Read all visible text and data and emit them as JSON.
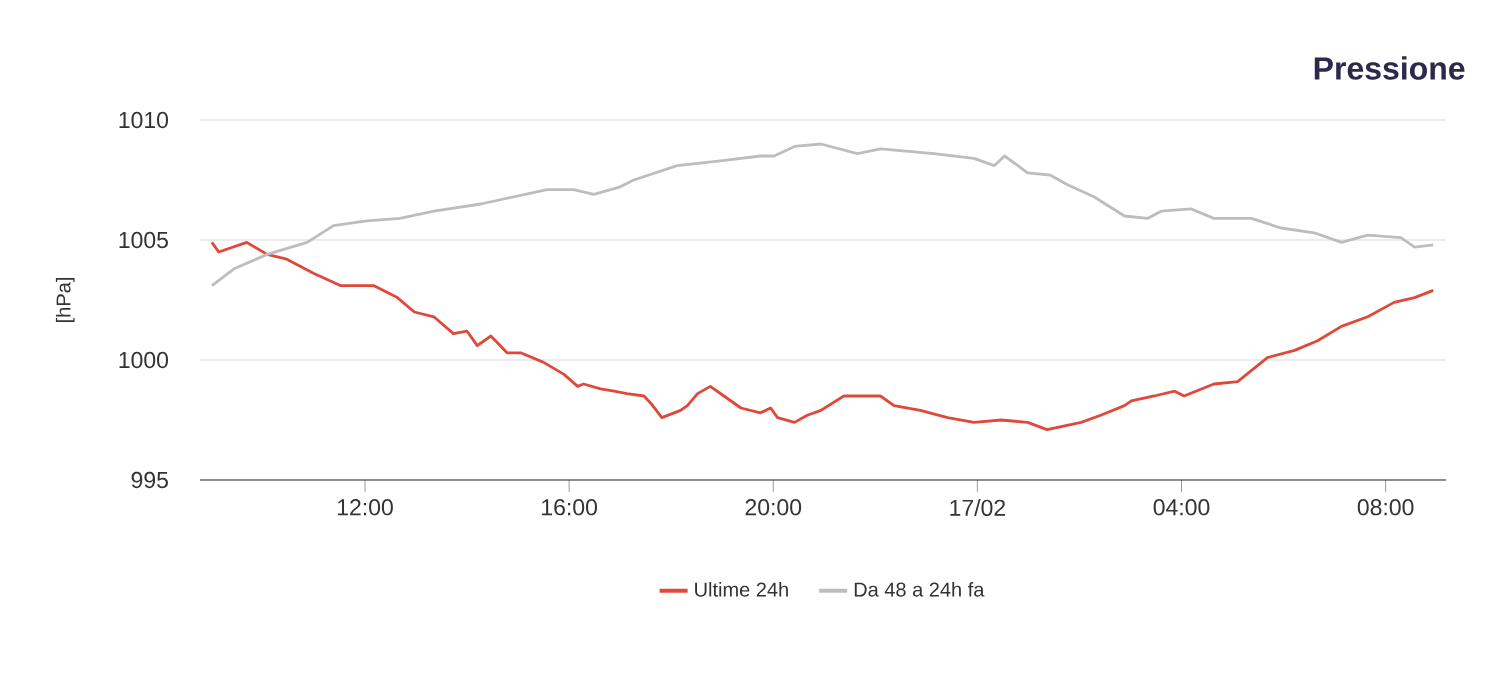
{
  "chart_data": {
    "type": "line",
    "title": "Pressione",
    "ylabel": "[hPa]",
    "xlim": [
      "--02-16T08:46",
      "--02-17T09:11"
    ],
    "ylim": [
      995,
      1010
    ],
    "xticks": [
      {
        "value": "--02-16T12:00",
        "label": "12:00"
      },
      {
        "value": "--02-16T16:00",
        "label": "16:00"
      },
      {
        "value": "--02-16T20:00",
        "label": "20:00"
      },
      {
        "value": "--02-17T00:00",
        "label": "17/02"
      },
      {
        "value": "--02-17T04:00",
        "label": "04:00"
      },
      {
        "value": "--02-17T08:00",
        "label": "08:00"
      }
    ],
    "yticks": [
      995,
      1000,
      1005,
      1010
    ],
    "grid": "y",
    "legend": "bottom",
    "marker": "none",
    "line_style": "solid",
    "series": [
      {
        "name": "Ultime 24h",
        "color": "#e0493a",
        "x": [
          "--02-16T09:00",
          "--02-16T09:08",
          "--02-16T09:41",
          "--02-16T10:05",
          "--02-16T10:28",
          "--02-16T11:00",
          "--02-16T11:31",
          "--02-16T12:10",
          "--02-16T12:38",
          "--02-16T12:58",
          "--02-16T13:21",
          "--02-16T13:44",
          "--02-16T14:00",
          "--02-16T14:12",
          "--02-16T14:28",
          "--02-16T14:47",
          "--02-16T15:03",
          "--02-16T15:30",
          "--02-16T15:54",
          "--02-16T16:10",
          "--02-16T16:17",
          "--02-16T16:37",
          "--02-16T16:53",
          "--02-16T17:08",
          "--02-16T17:28",
          "--02-16T17:36",
          "--02-16T17:49",
          "--02-16T18:11",
          "--02-16T18:19",
          "--02-16T18:31",
          "--02-16T18:46",
          "--02-16T19:02",
          "--02-16T19:22",
          "--02-16T19:45",
          "--02-16T19:57",
          "--02-16T20:05",
          "--02-16T20:25",
          "--02-16T20:40",
          "--02-16T20:56",
          "--02-16T21:23",
          "--02-16T22:06",
          "--02-16T22:22",
          "--02-16T22:53",
          "--02-16T23:25",
          "--02-16T23:56",
          "--02-17T00:28",
          "--02-17T00:59",
          "--02-17T01:22",
          "--02-17T02:02",
          "--02-17T02:25",
          "--02-17T02:53",
          "--02-17T03:01",
          "--02-17T03:28",
          "--02-17T03:52",
          "--02-17T04:03",
          "--02-17T04:38",
          "--02-17T05:06",
          "--02-17T05:41",
          "--02-17T06:13",
          "--02-17T06:40",
          "--02-17T07:08",
          "--02-17T07:39",
          "--02-17T08:10",
          "--02-17T08:34",
          "--02-17T08:56"
        ],
        "values": [
          1004.9,
          1004.5,
          1004.9,
          1004.4,
          1004.2,
          1003.6,
          1003.1,
          1003.1,
          1002.6,
          1002.0,
          1001.8,
          1001.1,
          1001.2,
          1000.6,
          1001.0,
          1000.3,
          1000.3,
          999.9,
          999.4,
          998.9,
          999.0,
          998.8,
          998.7,
          998.6,
          998.5,
          998.2,
          997.6,
          997.9,
          998.1,
          998.6,
          998.9,
          998.5,
          998.0,
          997.8,
          998.0,
          997.6,
          997.4,
          997.7,
          997.9,
          998.5,
          998.5,
          998.1,
          997.9,
          997.6,
          997.4,
          997.5,
          997.4,
          997.1,
          997.4,
          997.7,
          998.1,
          998.3,
          998.5,
          998.7,
          998.5,
          999.0,
          999.1,
          1000.1,
          1000.4,
          1000.8,
          1001.4,
          1001.8,
          1002.4,
          1002.6,
          1002.9
        ]
      },
      {
        "name": "Da 48 a 24h fa",
        "color": "#bdbdbd",
        "x": [
          "--02-16T09:00",
          "--02-16T09:26",
          "--02-16T10:05",
          "--02-16T10:52",
          "--02-16T11:23",
          "--02-16T12:02",
          "--02-16T12:41",
          "--02-16T13:21",
          "--02-16T14:16",
          "--02-16T14:55",
          "--02-16T15:34",
          "--02-16T16:05",
          "--02-16T16:29",
          "--02-16T16:59",
          "--02-16T17:16",
          "--02-16T18:07",
          "--02-16T18:58",
          "--02-16T19:45",
          "--02-16T20:01",
          "--02-16T20:25",
          "--02-16T20:56",
          "--02-16T21:39",
          "--02-16T22:06",
          "--02-16T23:09",
          "--02-16T23:56",
          "--02-17T00:20",
          "--02-17T00:32",
          "--02-17T00:59",
          "--02-17T01:26",
          "--02-17T01:46",
          "--02-17T02:17",
          "--02-17T02:53",
          "--02-17T03:20",
          "--02-17T03:36",
          "--02-17T04:11",
          "--02-17T04:38",
          "--02-17T05:22",
          "--02-17T05:57",
          "--02-17T06:36",
          "--02-17T07:08",
          "--02-17T07:39",
          "--02-17T08:18",
          "--02-17T08:34",
          "--02-17T08:56"
        ],
        "values": [
          1003.1,
          1003.8,
          1004.4,
          1004.9,
          1005.6,
          1005.8,
          1005.9,
          1006.2,
          1006.5,
          1006.8,
          1007.1,
          1007.1,
          1006.9,
          1007.2,
          1007.5,
          1008.1,
          1008.3,
          1008.5,
          1008.5,
          1008.9,
          1009.0,
          1008.6,
          1008.8,
          1008.6,
          1008.4,
          1008.1,
          1008.5,
          1007.8,
          1007.7,
          1007.3,
          1006.8,
          1006.0,
          1005.9,
          1006.2,
          1006.3,
          1005.9,
          1005.9,
          1005.5,
          1005.3,
          1004.9,
          1005.2,
          1005.1,
          1004.7,
          1004.8
        ]
      }
    ]
  }
}
